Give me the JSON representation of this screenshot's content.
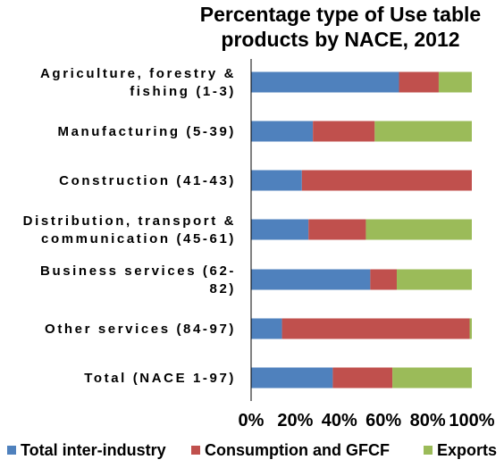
{
  "chart_data": {
    "type": "bar",
    "orientation": "horizontal",
    "stacked": "percent",
    "title": "Percentage type of Use table products by NACE, 2012",
    "title_lines": [
      "Percentage type of Use table",
      "products by NACE, 2012"
    ],
    "categories": [
      "Agriculture, forestry & fishing (1-3)",
      "Manufacturing (5-39)",
      "Construction (41-43)",
      "Distribution, transport & communication (45-61)",
      "Business services (62-82)",
      "Other services (84-97)",
      "Total (NACE 1-97)"
    ],
    "category_lines": [
      [
        "Agriculture, forestry &",
        "fishing (1-3)"
      ],
      [
        "Manufacturing (5-39)"
      ],
      [
        "Construction (41-43)"
      ],
      [
        "Distribution, transport &",
        "communication (45-61)"
      ],
      [
        "Business services (62-",
        "82)"
      ],
      [
        "Other services (84-97)"
      ],
      [
        "Total (NACE 1-97)"
      ]
    ],
    "series": [
      {
        "name": "Total inter-industry",
        "color": "#4F81BD",
        "values": [
          67,
          28,
          23,
          26,
          54,
          14,
          37
        ]
      },
      {
        "name": "Consumption and GFCF",
        "color": "#C0504D",
        "values": [
          18,
          28,
          77,
          26,
          12,
          85,
          27
        ]
      },
      {
        "name": "Exports",
        "color": "#9BBB59",
        "values": [
          15,
          44,
          0,
          48,
          34,
          1,
          36
        ]
      }
    ],
    "xlim": [
      0,
      100
    ],
    "x_ticks": [
      "0%",
      "20%",
      "40%",
      "60%",
      "80%",
      "100%"
    ],
    "grid": false,
    "legend_position": "bottom"
  }
}
